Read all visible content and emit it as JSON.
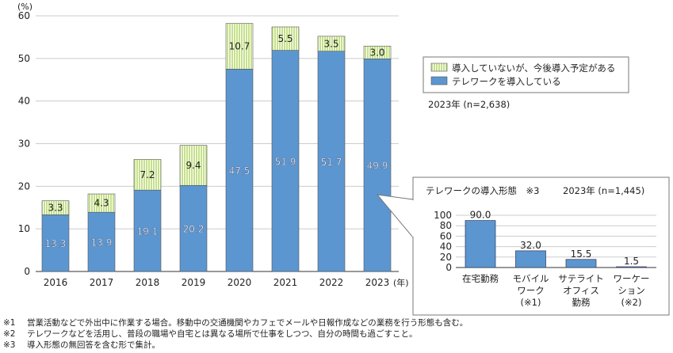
{
  "chart_data": [
    {
      "type": "bar",
      "stacked": true,
      "ylabel": "(%)",
      "xlabel_unit": "(年)",
      "ylim": [
        0,
        60
      ],
      "yticks": [
        0,
        10,
        20,
        30,
        40,
        50,
        60
      ],
      "grid": true,
      "categories": [
        "2016",
        "2017",
        "2018",
        "2019",
        "2020",
        "2021",
        "2022",
        "2023"
      ],
      "series": [
        {
          "name": "テレワークを導入している",
          "color": "#5b96d0",
          "values": [
            13.3,
            13.9,
            19.1,
            20.2,
            47.5,
            51.9,
            51.7,
            49.9
          ]
        },
        {
          "name": "導入していないが、今後導入予定がある",
          "color": "#c6e08a",
          "values": [
            3.3,
            4.3,
            7.2,
            9.4,
            10.7,
            5.5,
            3.5,
            3.0
          ]
        }
      ],
      "legend_placement": "right",
      "annotation": "2023年 (n=2,638)"
    },
    {
      "type": "bar",
      "title": "テレワークの導入形態　※3",
      "subtitle": "2023年 (n=1,445)",
      "ylim": [
        0,
        100
      ],
      "yticks": [
        0,
        20,
        40,
        60,
        80,
        100
      ],
      "grid": true,
      "categories": [
        [
          "在宅勤務"
        ],
        [
          "モバイル",
          "ワーク",
          "(※1)"
        ],
        [
          "サテライト",
          "オフィス",
          "勤務"
        ],
        [
          "ワーケー",
          "ション",
          "(※2)"
        ]
      ],
      "values": [
        90.0,
        32.0,
        15.5,
        1.5
      ],
      "color": "#5b96d0"
    }
  ],
  "notes": [
    {
      "mark": "※1",
      "text": "営業活動などで外出中に作業する場合。移動中の交通機関やカフェでメールや日報作成などの業務を行う形態も含む。"
    },
    {
      "mark": "※2",
      "text": "テレワークなどを活用し、普段の職場や自宅とは異なる場所で仕事をしつつ、自分の時間も過ごすこと。"
    },
    {
      "mark": "※3",
      "text": "導入形態の無回答を含む形で集計。"
    }
  ]
}
